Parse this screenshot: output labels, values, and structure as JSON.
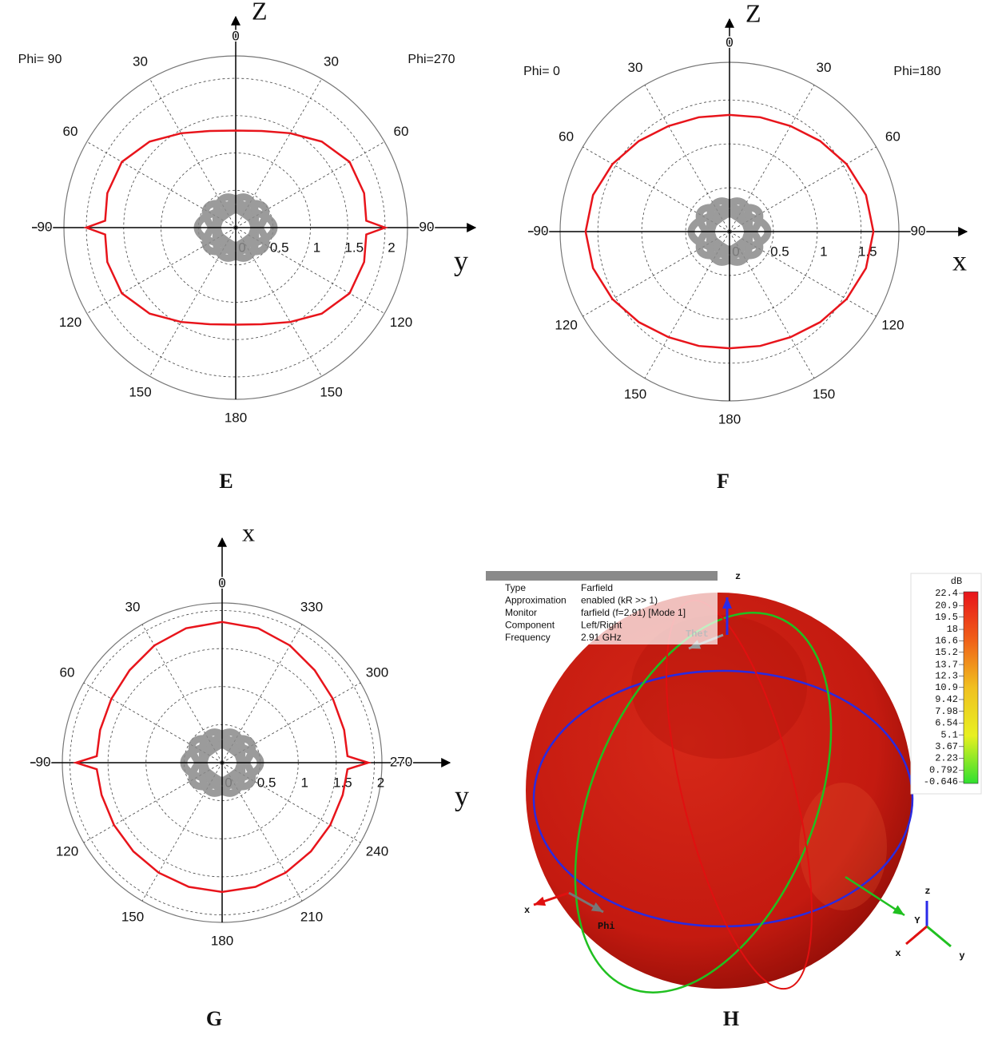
{
  "chart_data": [
    {
      "type": "polar",
      "panel": "E",
      "up_axis_label": "Z",
      "right_axis_label": "y",
      "corner_labels": [
        "Phi= 90",
        "Phi=270"
      ],
      "angle_mode": "mirror",
      "angle_ticks": [
        0,
        30,
        60,
        90,
        120,
        150,
        180
      ],
      "rlim": [
        0,
        2.3
      ],
      "rticks": [
        0,
        0.5,
        1,
        1.5,
        2
      ],
      "grid": true,
      "series": [
        {
          "color": "#e8141b",
          "theta": [
            0,
            15,
            30,
            45,
            60,
            75,
            87,
            90,
            93,
            105,
            120,
            135,
            150,
            165,
            180,
            195,
            210,
            225,
            240,
            255,
            267,
            270,
            273,
            285,
            300,
            315,
            330,
            345
          ],
          "r": [
            1.3,
            1.34,
            1.46,
            1.63,
            1.76,
            1.78,
            1.75,
            2.0,
            1.75,
            1.78,
            1.76,
            1.63,
            1.46,
            1.34,
            1.3,
            1.34,
            1.46,
            1.63,
            1.76,
            1.78,
            1.75,
            2.0,
            1.75,
            1.78,
            1.76,
            1.63,
            1.46,
            1.34
          ]
        }
      ]
    },
    {
      "type": "polar",
      "panel": "F",
      "up_axis_label": "Z",
      "right_axis_label": "x",
      "corner_labels": [
        "Phi=  0",
        "Phi=180"
      ],
      "angle_mode": "mirror",
      "angle_ticks": [
        0,
        30,
        60,
        90,
        120,
        150,
        180
      ],
      "rlim": [
        0,
        1.93
      ],
      "rticks": [
        0,
        0.5,
        1,
        1.5
      ],
      "grid": true,
      "series": [
        {
          "color": "#e8141b",
          "theta": [
            0,
            15,
            30,
            45,
            60,
            75,
            90,
            105,
            120,
            135,
            150,
            165,
            180,
            195,
            210,
            225,
            240,
            255,
            270,
            285,
            300,
            315,
            330,
            345
          ],
          "r": [
            1.33,
            1.35,
            1.39,
            1.46,
            1.54,
            1.61,
            1.64,
            1.61,
            1.54,
            1.46,
            1.39,
            1.35,
            1.33,
            1.35,
            1.39,
            1.46,
            1.54,
            1.61,
            1.64,
            1.61,
            1.54,
            1.46,
            1.39,
            1.35
          ]
        }
      ]
    },
    {
      "type": "polar",
      "panel": "G",
      "up_axis_label": "x",
      "right_axis_label": "y",
      "angle_mode": "counterclockwise",
      "angle_ticks": [
        0,
        30,
        60,
        90,
        120,
        150,
        180,
        210,
        240,
        270,
        300,
        330
      ],
      "rlim": [
        0,
        2.1
      ],
      "rticks": [
        0,
        0.5,
        1,
        1.5,
        2
      ],
      "grid": true,
      "series": [
        {
          "color": "#e8141b",
          "theta": [
            0,
            15,
            30,
            45,
            60,
            75,
            87,
            90,
            93,
            105,
            120,
            135,
            150,
            165,
            180,
            195,
            210,
            225,
            240,
            255,
            267,
            270,
            273,
            285,
            300,
            315,
            330,
            345
          ],
          "r": [
            1.85,
            1.83,
            1.78,
            1.72,
            1.68,
            1.66,
            1.65,
            1.92,
            1.65,
            1.64,
            1.64,
            1.65,
            1.67,
            1.69,
            1.7,
            1.69,
            1.67,
            1.65,
            1.64,
            1.64,
            1.65,
            1.92,
            1.65,
            1.66,
            1.68,
            1.72,
            1.78,
            1.83
          ]
        }
      ]
    },
    {
      "type": "farfield",
      "panel": "H",
      "info": [
        {
          "key": "Type",
          "value": "Farfield"
        },
        {
          "key": "Approximation",
          "value": "enabled (kR >> 1)"
        },
        {
          "key": "Monitor",
          "value": "farfield (f=2.91) [Mode 1]"
        },
        {
          "key": "Component",
          "value": "Left/Right"
        },
        {
          "key": "Frequency",
          "value": "2.91 GHz"
        }
      ],
      "colorbar": {
        "unit": "dB",
        "ticks": [
          22.4,
          20.9,
          19.5,
          18,
          16.6,
          15.2,
          13.7,
          12.3,
          10.9,
          9.42,
          7.98,
          6.54,
          5.1,
          3.67,
          2.23,
          0.792,
          -0.646
        ],
        "colors": [
          "#e8141b",
          "#f06018",
          "#f0c020",
          "#e8f020",
          "#30e030"
        ]
      },
      "axis_labels": {
        "z": "z",
        "x": "x",
        "theta": "Thet",
        "phi": "Phi"
      },
      "triad_labels": {
        "z": "z",
        "center": "Y",
        "x": "x",
        "y": "y"
      }
    }
  ]
}
